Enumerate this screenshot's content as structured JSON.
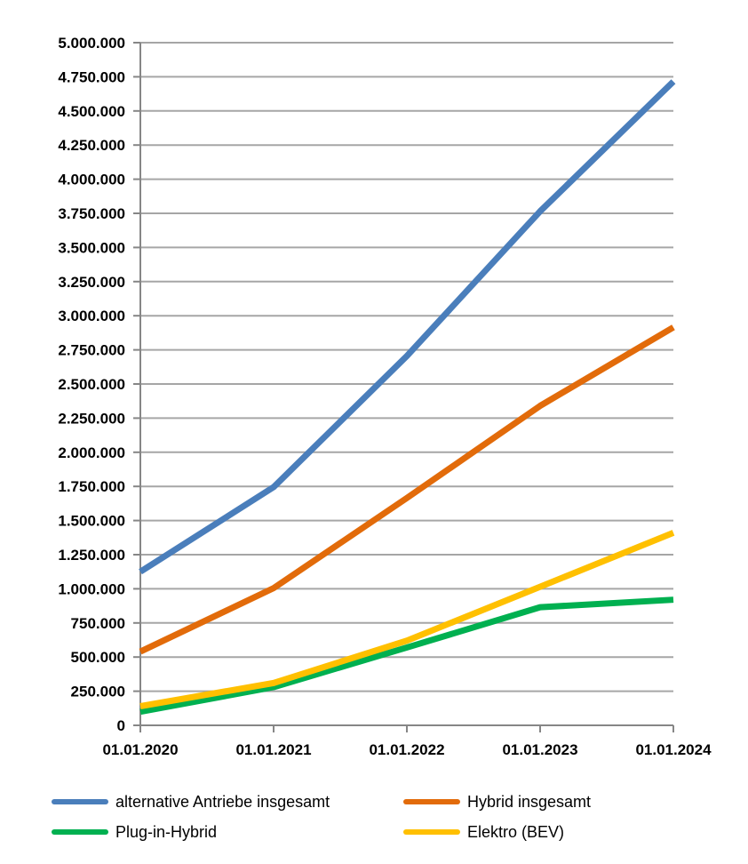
{
  "chart_data": {
    "type": "line",
    "categories": [
      "01.01.2020",
      "01.01.2021",
      "01.01.2022",
      "01.01.2023",
      "01.01.2024"
    ],
    "yticks": [
      "0",
      "250.000",
      "500.000",
      "750.000",
      "1.000.000",
      "1.250.000",
      "1.500.000",
      "1.750.000",
      "2.000.000",
      "2.250.000",
      "2.500.000",
      "2.750.000",
      "3.000.000",
      "3.250.000",
      "3.500.000",
      "3.750.000",
      "4.000.000",
      "4.250.000",
      "4.500.000",
      "4.750.000",
      "5.000.000"
    ],
    "ylim": [
      0,
      5000000
    ],
    "grid": true,
    "legend_position": "bottom",
    "series": [
      {
        "name": "alternative Antriebe insgesamt",
        "color": "#4A7EBB",
        "values": [
          1125000,
          1745000,
          2705000,
          3765000,
          4715000
        ]
      },
      {
        "name": "Hybrid insgesamt",
        "color": "#E26B0A",
        "values": [
          540000,
          1005000,
          1665000,
          2340000,
          2915000
        ]
      },
      {
        "name": "Plug-in-Hybrid",
        "color": "#00B050",
        "values": [
          100000,
          280000,
          570000,
          865000,
          920000
        ]
      },
      {
        "name": "Elektro (BEV)",
        "color": "#FFC000",
        "values": [
          140000,
          310000,
          620000,
          1015000,
          1410000
        ]
      }
    ]
  }
}
